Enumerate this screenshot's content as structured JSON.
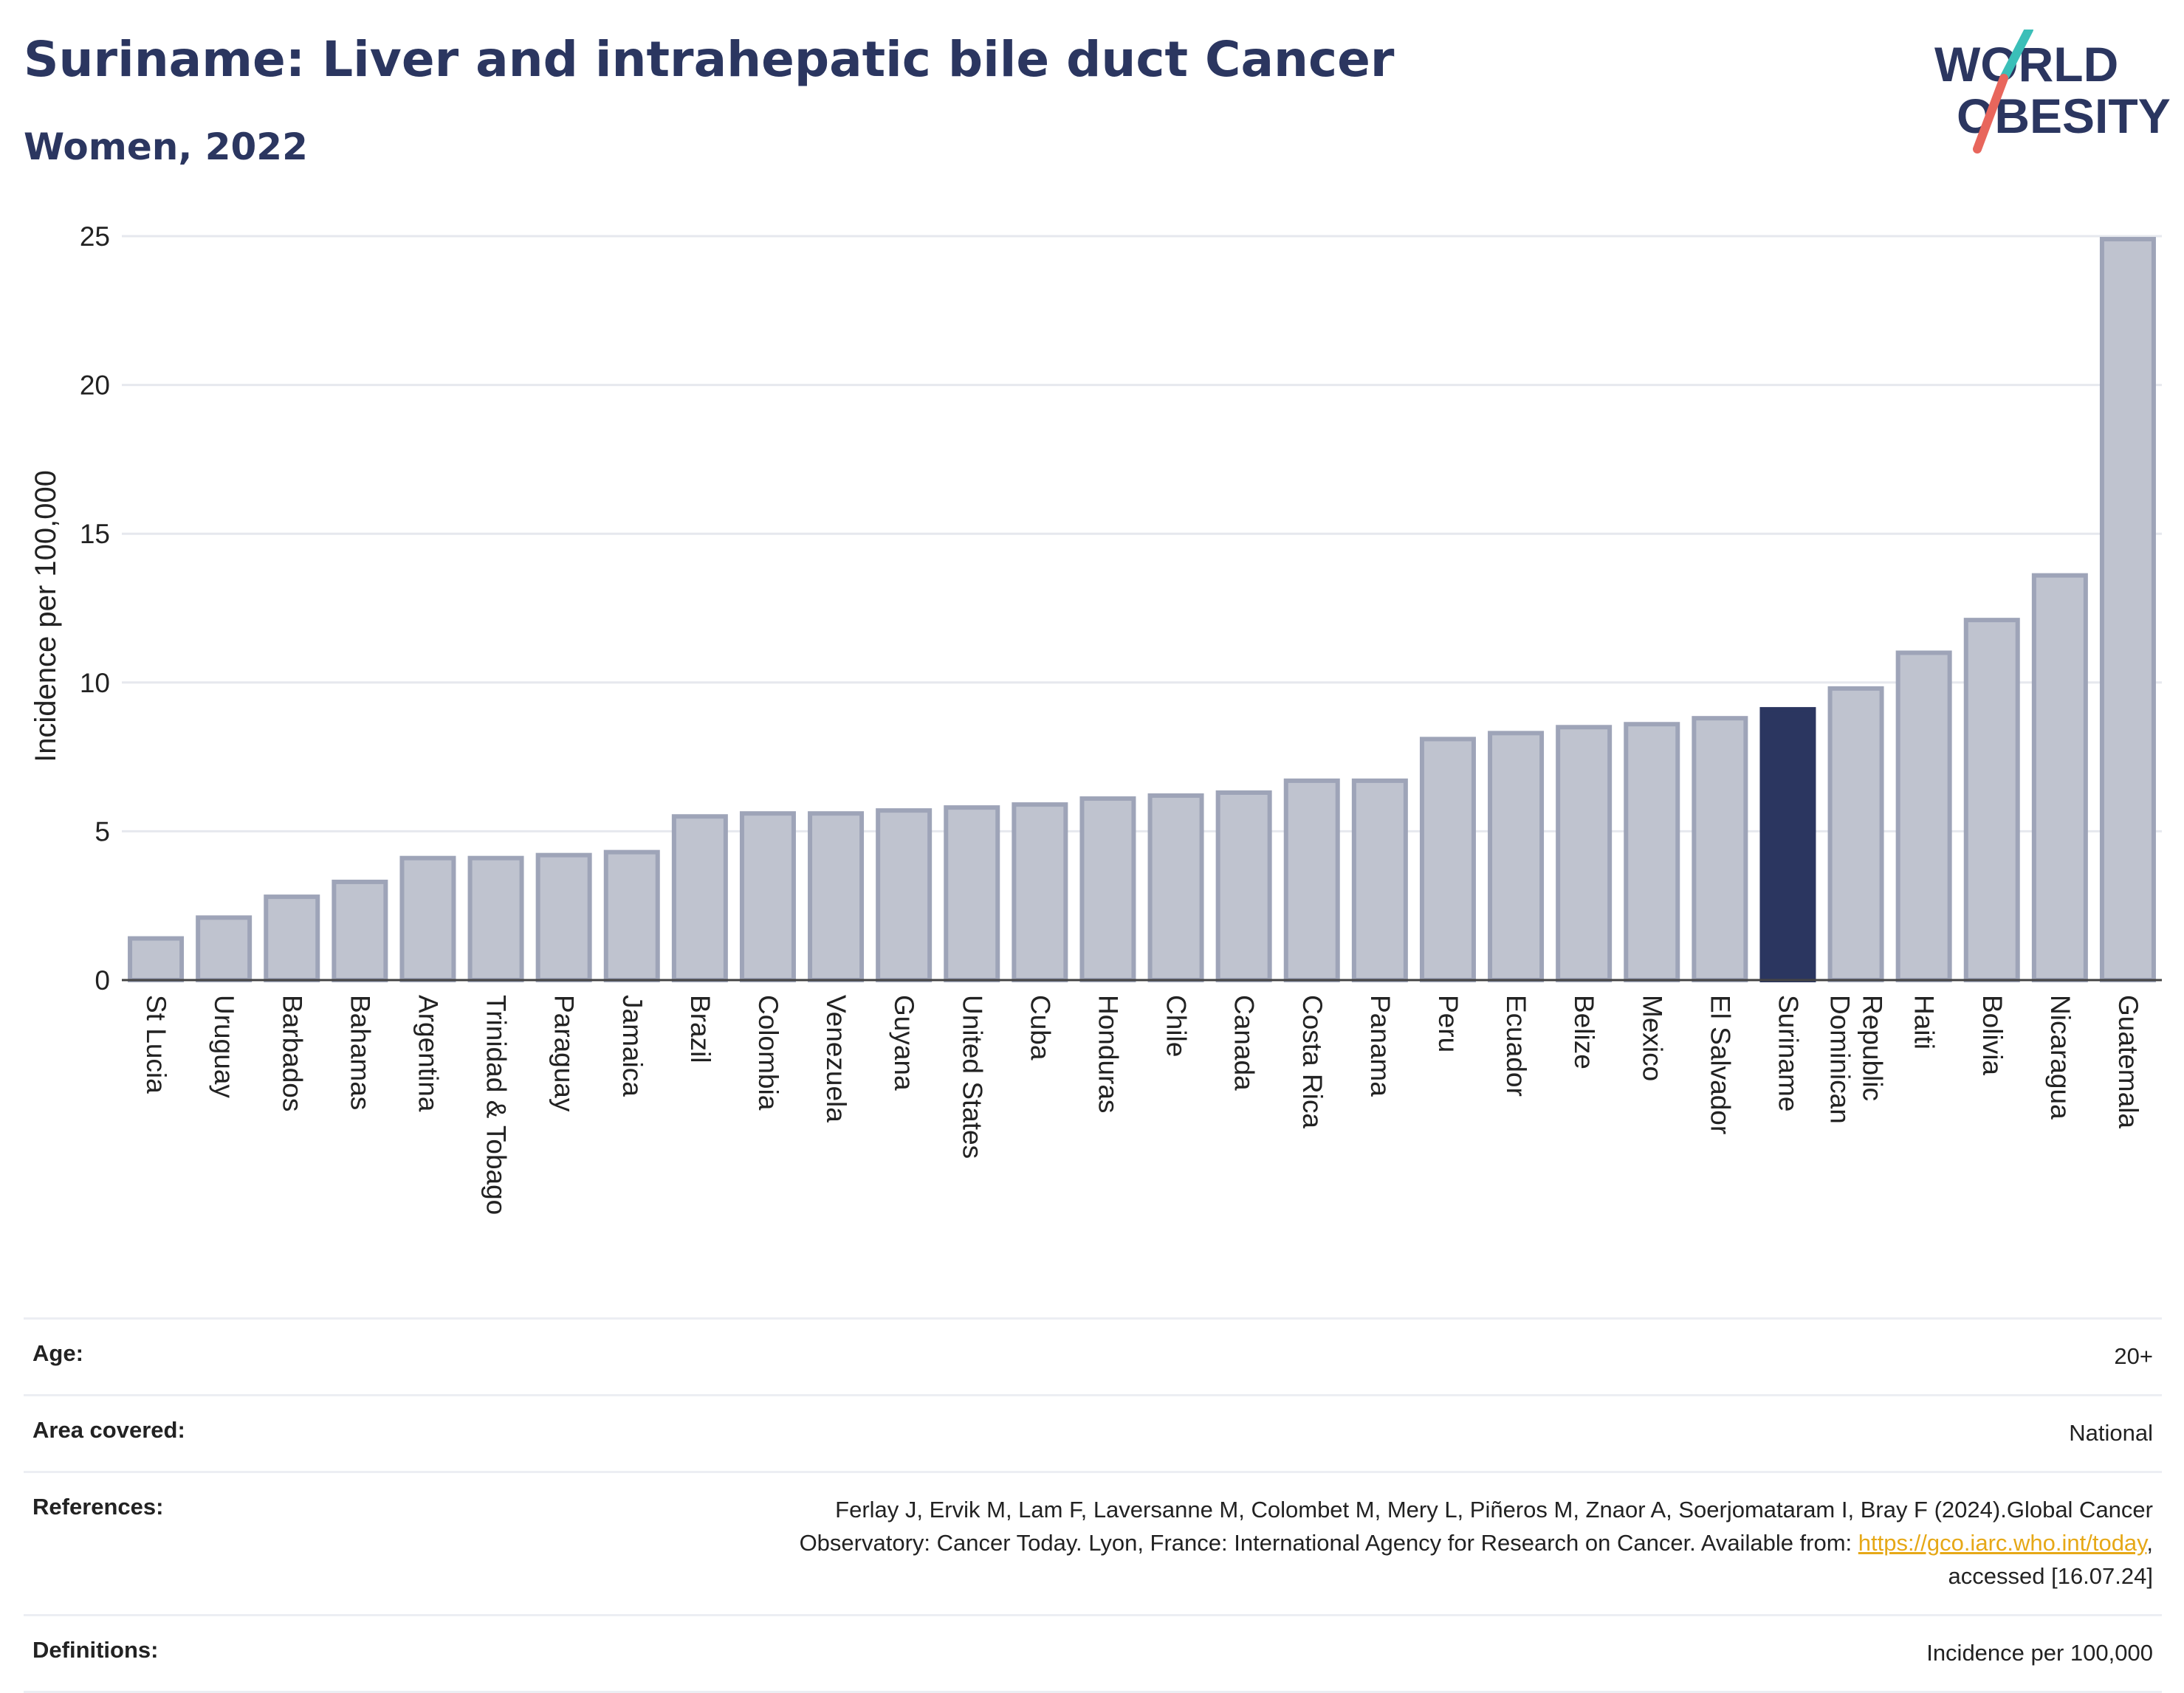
{
  "header": {
    "title": "Suriname: Liver and intrahepatic bile duct Cancer",
    "subtitle": "Women, 2022"
  },
  "logo": {
    "line1": "WORLD",
    "line2": "OBESITY",
    "colors": {
      "text": "#2b3660",
      "slash_top": "#3bbfb8",
      "slash_bottom": "#e8665c"
    }
  },
  "chart_data": {
    "type": "bar",
    "title": "Suriname: Liver and intrahepatic bile duct Cancer",
    "subtitle": "Women, 2022",
    "xlabel": "",
    "ylabel": "Incidence per 100,000",
    "ylim": [
      0,
      25
    ],
    "yticks": [
      0,
      5,
      10,
      15,
      20,
      25
    ],
    "grid": true,
    "highlight": "Suriname",
    "colors": {
      "bar": "#bfc3cf",
      "bar_border": "#9ea4b8",
      "highlight": "#2b3660"
    },
    "categories": [
      "St Lucia",
      "Uruguay",
      "Barbados",
      "Bahamas",
      "Argentina",
      "Trinidad & Tobago",
      "Paraguay",
      "Jamaica",
      "Brazil",
      "Colombia",
      "Venezuela",
      "Guyana",
      "United States",
      "Cuba",
      "Honduras",
      "Chile",
      "Canada",
      "Costa Rica",
      "Panama",
      "Peru",
      "Ecuador",
      "Belize",
      "Mexico",
      "El Salvador",
      "Suriname",
      "Dominican Republic",
      "Haiti",
      "Bolivia",
      "Nicaragua",
      "Guatemala"
    ],
    "tick_lines": [
      [
        "St Lucia"
      ],
      [
        "Uruguay"
      ],
      [
        "Barbados"
      ],
      [
        "Bahamas"
      ],
      [
        "Argentina"
      ],
      [
        "Trinidad & Tobago"
      ],
      [
        "Paraguay"
      ],
      [
        "Jamaica"
      ],
      [
        "Brazil"
      ],
      [
        "Colombia"
      ],
      [
        "Venezuela"
      ],
      [
        "Guyana"
      ],
      [
        "United States"
      ],
      [
        "Cuba"
      ],
      [
        "Honduras"
      ],
      [
        "Chile"
      ],
      [
        "Canada"
      ],
      [
        "Costa Rica"
      ],
      [
        "Panama"
      ],
      [
        "Peru"
      ],
      [
        "Ecuador"
      ],
      [
        "Belize"
      ],
      [
        "Mexico"
      ],
      [
        "El Salvador"
      ],
      [
        "Suriname"
      ],
      [
        "Dominican",
        "Republic"
      ],
      [
        "Haiti"
      ],
      [
        "Bolivia"
      ],
      [
        "Nicaragua"
      ],
      [
        "Guatemala"
      ]
    ],
    "values": [
      1.4,
      2.1,
      2.8,
      3.3,
      4.1,
      4.1,
      4.2,
      4.3,
      5.5,
      5.6,
      5.6,
      5.7,
      5.8,
      5.9,
      6.1,
      6.2,
      6.3,
      6.7,
      6.7,
      8.1,
      8.3,
      8.5,
      8.6,
      8.8,
      9.1,
      9.8,
      11.0,
      12.1,
      13.6,
      24.9
    ]
  },
  "meta": {
    "age_label": "Age:",
    "age_value": "20+",
    "area_label": "Area covered:",
    "area_value": "National",
    "references_label": "References:",
    "references_line1": "Ferlay J, Ervik M, Lam F, Laversanne M, Colombet M, Mery L, Piñeros M, Znaor A, Soerjomataram I, Bray F (2024).Global Cancer",
    "references_line2_pre": "Observatory: Cancer Today. Lyon, France: International Agency for Research on Cancer. Available from: ",
    "references_link": "https://gco.iarc.who.int/today",
    "references_line2_post": ",",
    "references_line3": "accessed [16.07.24]",
    "definitions_label": "Definitions:",
    "definitions_value": "Incidence per 100,000"
  }
}
